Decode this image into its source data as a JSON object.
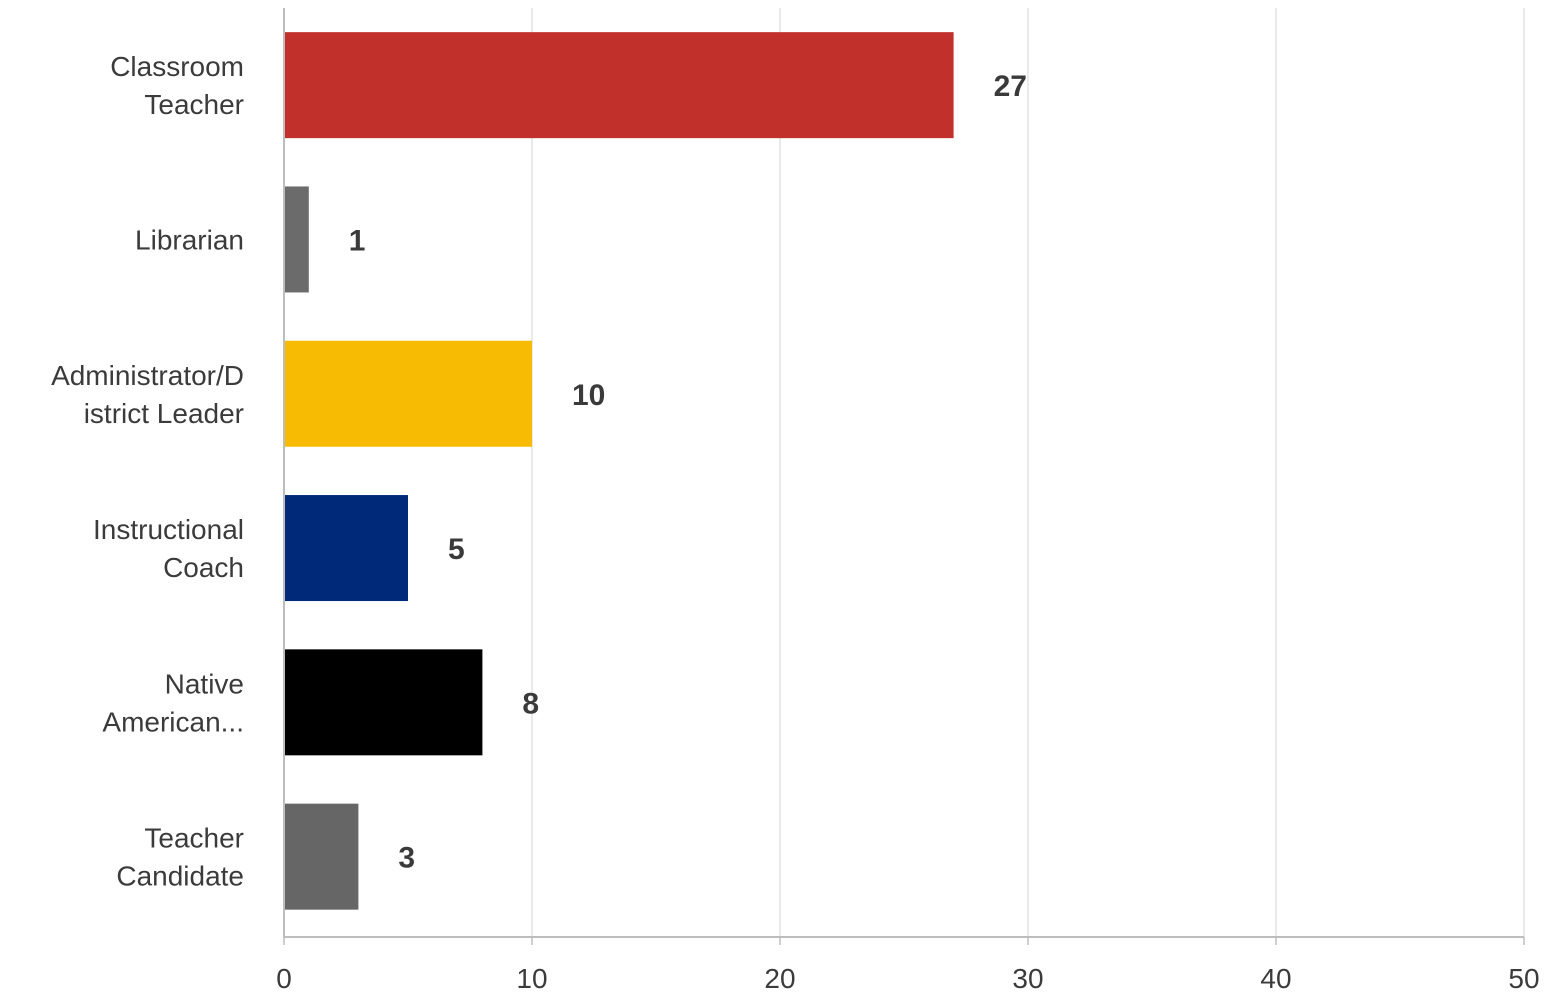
{
  "chart_data": {
    "type": "bar",
    "orientation": "horizontal",
    "categories": [
      [
        "Classroom",
        "Teacher"
      ],
      [
        "Librarian"
      ],
      [
        "Administrator/D",
        "istrict Leader"
      ],
      [
        "Instructional",
        "Coach"
      ],
      [
        "Native",
        "American..."
      ],
      [
        "Teacher",
        "Candidate"
      ]
    ],
    "values": [
      27,
      1,
      10,
      5,
      8,
      3
    ],
    "colors": [
      "#c1302a",
      "#6b6b6b",
      "#f7bb03",
      "#00297a",
      "#000000",
      "#666666"
    ],
    "xlim": [
      0,
      50
    ],
    "xticks": [
      0,
      10,
      20,
      30,
      40,
      50
    ],
    "grid": true,
    "title": "",
    "xlabel": "",
    "ylabel": ""
  }
}
